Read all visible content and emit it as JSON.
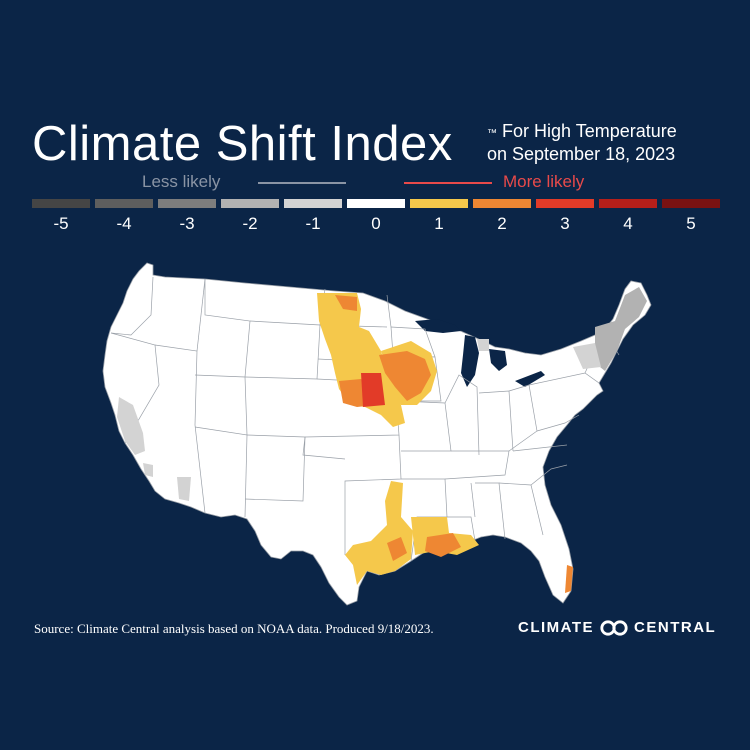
{
  "title": {
    "main": "Climate Shift Index",
    "trademark": "™",
    "sub_line1": "For High Temperature",
    "sub_line2": "on September 18, 2023"
  },
  "legend": {
    "less_label": "Less likely",
    "more_label": "More likely",
    "less_color": "#8a94a4",
    "more_color": "#e84a4a",
    "scale": [
      {
        "value": "-5",
        "color": "#454545"
      },
      {
        "value": "-4",
        "color": "#5e5e5e"
      },
      {
        "value": "-3",
        "color": "#7d7d7d"
      },
      {
        "value": "-2",
        "color": "#b2b2b2"
      },
      {
        "value": "-1",
        "color": "#d3d3d3"
      },
      {
        "value": "0",
        "color": "#ffffff"
      },
      {
        "value": "1",
        "color": "#f5c84b"
      },
      {
        "value": "2",
        "color": "#ee8733"
      },
      {
        "value": "3",
        "color": "#e23b28"
      },
      {
        "value": "4",
        "color": "#b61f1a"
      },
      {
        "value": "5",
        "color": "#7a1212"
      }
    ]
  },
  "map": {
    "region": "Contiguous United States",
    "land_color": "#ffffff",
    "border_color": "#9aa0a8",
    "highlighted_areas": [
      {
        "area": "Northern Great Plains / Dakotas",
        "csi": "1"
      },
      {
        "area": "Northern South Dakota",
        "csi": "2"
      },
      {
        "area": "Iowa / southern Minnesota",
        "csi": "2"
      },
      {
        "area": "Eastern Nebraska",
        "csi": "3"
      },
      {
        "area": "Kansas / Nebraska",
        "csi": "2"
      },
      {
        "area": "Texas Gulf Coast",
        "csi": "1"
      },
      {
        "area": "Houston area",
        "csi": "2"
      },
      {
        "area": "Louisiana",
        "csi": "1"
      },
      {
        "area": "Southern Louisiana",
        "csi": "2"
      },
      {
        "area": "Southeast Florida",
        "csi": "2"
      },
      {
        "area": "Central California",
        "csi": "-1"
      },
      {
        "area": "New England",
        "csi": "-2"
      },
      {
        "area": "Northern Maine",
        "csi": "-1"
      }
    ]
  },
  "footer": {
    "source": "Source: Climate Central analysis based on NOAA data. Produced 9/18/2023.",
    "brand_left": "CLIMATE",
    "brand_right": "CENTRAL"
  }
}
